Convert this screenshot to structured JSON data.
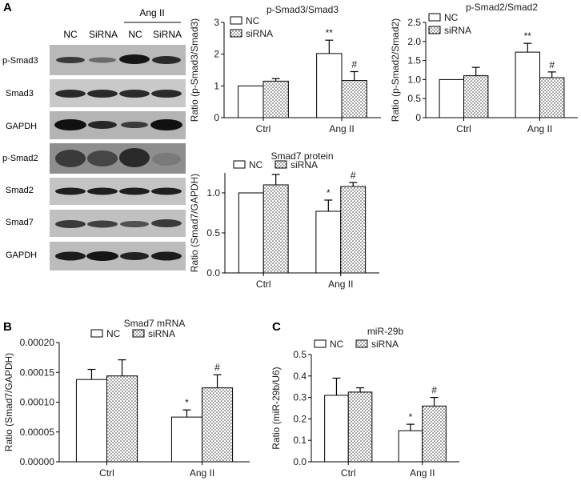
{
  "panel_labels": [
    "A",
    "B",
    "C"
  ],
  "blot": {
    "col_labels": [
      "NC",
      "SiRNA",
      "NC",
      "SiRNA"
    ],
    "group_label": "Ang II",
    "rows": [
      "p-Smad3",
      "Smad3",
      "GAPDH",
      "p-Smad2",
      "Smad2",
      "Smad7",
      "GAPDH"
    ]
  },
  "legend_labels": [
    "NC",
    "siRNA"
  ],
  "chart_data": [
    {
      "type": "bar",
      "title": "p-Smad3/Smad3",
      "ylabel": "Ratio (p-Smad3/Smad3)",
      "categories": [
        "Ctrl",
        "Ang II"
      ],
      "ylim": [
        0,
        3
      ],
      "yticks": [
        "0",
        "1",
        "2",
        "3"
      ],
      "legend": "top-left",
      "series": [
        {
          "name": "NC",
          "values": [
            1.0,
            2.02
          ],
          "errors": [
            0,
            0.42
          ]
        },
        {
          "name": "siRNA",
          "values": [
            1.15,
            1.17
          ],
          "errors": [
            0.08,
            0.28
          ]
        }
      ],
      "annotations": [
        {
          "category": "Ang II",
          "series": "NC",
          "text": "**"
        },
        {
          "category": "Ang II",
          "series": "siRNA",
          "text": "#"
        }
      ]
    },
    {
      "type": "bar",
      "title": "p-Smad2/Smad2",
      "ylabel": "Ratio (p-Smad2/Smad2)",
      "categories": [
        "Ctrl",
        "Ang II"
      ],
      "ylim": [
        0,
        2.5
      ],
      "yticks": [
        "0",
        "0.5",
        "1.0",
        "1.5",
        "2.0",
        "2.5"
      ],
      "legend": "top-left",
      "series": [
        {
          "name": "NC",
          "values": [
            1.0,
            1.72
          ],
          "errors": [
            0,
            0.23
          ]
        },
        {
          "name": "siRNA",
          "values": [
            1.1,
            1.05
          ],
          "errors": [
            0.22,
            0.15
          ]
        }
      ],
      "annotations": [
        {
          "category": "Ang II",
          "series": "NC",
          "text": "**"
        },
        {
          "category": "Ang II",
          "series": "siRNA",
          "text": "#"
        }
      ]
    },
    {
      "type": "bar",
      "title": "Smad7 protein",
      "ylabel": "Ratio (Smad7/GAPDH)",
      "categories": [
        "Ctrl",
        "Ang II"
      ],
      "ylim": [
        0,
        1.25
      ],
      "yticks": [
        "0.0",
        "0.5",
        "1.0"
      ],
      "legend": "top-center",
      "series": [
        {
          "name": "NC",
          "values": [
            1.0,
            0.77
          ],
          "errors": [
            0,
            0.14
          ]
        },
        {
          "name": "siRNA",
          "values": [
            1.1,
            1.08
          ],
          "errors": [
            0.13,
            0.05
          ]
        }
      ],
      "annotations": [
        {
          "category": "Ang II",
          "series": "NC",
          "text": "*"
        },
        {
          "category": "Ang II",
          "series": "siRNA",
          "text": "#"
        }
      ]
    },
    {
      "type": "bar",
      "title": "Smad7 mRNA",
      "ylabel": "Ratio (Smad7/GAPDH)",
      "categories": [
        "Ctrl",
        "Ang II"
      ],
      "ylim": [
        0,
        0.0002
      ],
      "yticks": [
        "0.00000",
        "0.00005",
        "0.00010",
        "0.00015",
        "0.00020"
      ],
      "legend": "top-center",
      "series": [
        {
          "name": "NC",
          "values": [
            0.000138,
            7.5e-05
          ],
          "errors": [
            1.7e-05,
            1.2e-05
          ]
        },
        {
          "name": "siRNA",
          "values": [
            0.000144,
            0.000124
          ],
          "errors": [
            2.7e-05,
            2.2e-05
          ]
        }
      ],
      "annotations": [
        {
          "category": "Ang II",
          "series": "NC",
          "text": "*"
        },
        {
          "category": "Ang II",
          "series": "siRNA",
          "text": "#"
        }
      ]
    },
    {
      "type": "bar",
      "title": "miR-29b",
      "ylabel": "Ratio (miR-29b/U6)",
      "categories": [
        "Ctrl",
        "Ang II"
      ],
      "ylim": [
        0,
        0.5
      ],
      "yticks": [
        "0.0",
        "0.1",
        "0.2",
        "0.3",
        "0.4",
        "0.5"
      ],
      "legend": "top-center",
      "series": [
        {
          "name": "NC",
          "values": [
            0.31,
            0.145
          ],
          "errors": [
            0.08,
            0.03
          ]
        },
        {
          "name": "siRNA",
          "values": [
            0.325,
            0.26
          ],
          "errors": [
            0.02,
            0.04
          ]
        }
      ],
      "annotations": [
        {
          "category": "Ang II",
          "series": "NC",
          "text": "*"
        },
        {
          "category": "Ang II",
          "series": "siRNA",
          "text": "#"
        }
      ]
    }
  ]
}
